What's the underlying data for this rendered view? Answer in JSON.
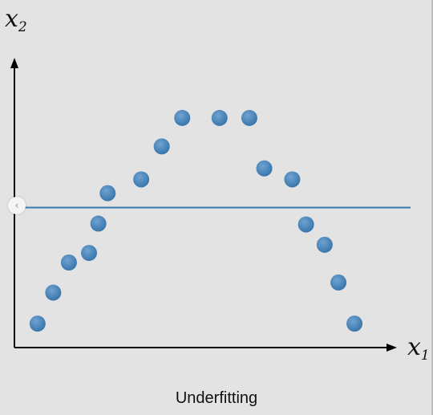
{
  "chart_data": {
    "type": "scatter",
    "title": "",
    "xlabel": "x",
    "xlabel_sub": "1",
    "ylabel": "x",
    "ylabel_sub": "2",
    "caption": "Underfitting",
    "xlim": [
      0,
      100
    ],
    "ylim": [
      0,
      100
    ],
    "grid": false,
    "point_color": "#3f7fb5",
    "line_color": "#3f7fb5",
    "points": [
      {
        "x": 6.2,
        "y": 8.5
      },
      {
        "x": 10.4,
        "y": 19.5
      },
      {
        "x": 14.6,
        "y": 30.2
      },
      {
        "x": 20.0,
        "y": 33.6
      },
      {
        "x": 22.5,
        "y": 44.0
      },
      {
        "x": 25.0,
        "y": 54.8
      },
      {
        "x": 34.0,
        "y": 59.7
      },
      {
        "x": 39.5,
        "y": 71.4
      },
      {
        "x": 45.0,
        "y": 81.5
      },
      {
        "x": 55.0,
        "y": 81.5
      },
      {
        "x": 63.0,
        "y": 81.5
      },
      {
        "x": 67.0,
        "y": 63.6
      },
      {
        "x": 74.5,
        "y": 59.7
      },
      {
        "x": 78.2,
        "y": 43.7
      },
      {
        "x": 83.2,
        "y": 36.5
      },
      {
        "x": 86.9,
        "y": 23.1
      },
      {
        "x": 91.2,
        "y": 8.5
      }
    ],
    "fit_line": {
      "y": 49.7
    }
  },
  "ui": {
    "nav_icon": "chevron-left-icon",
    "nav_glyph": "‹"
  }
}
